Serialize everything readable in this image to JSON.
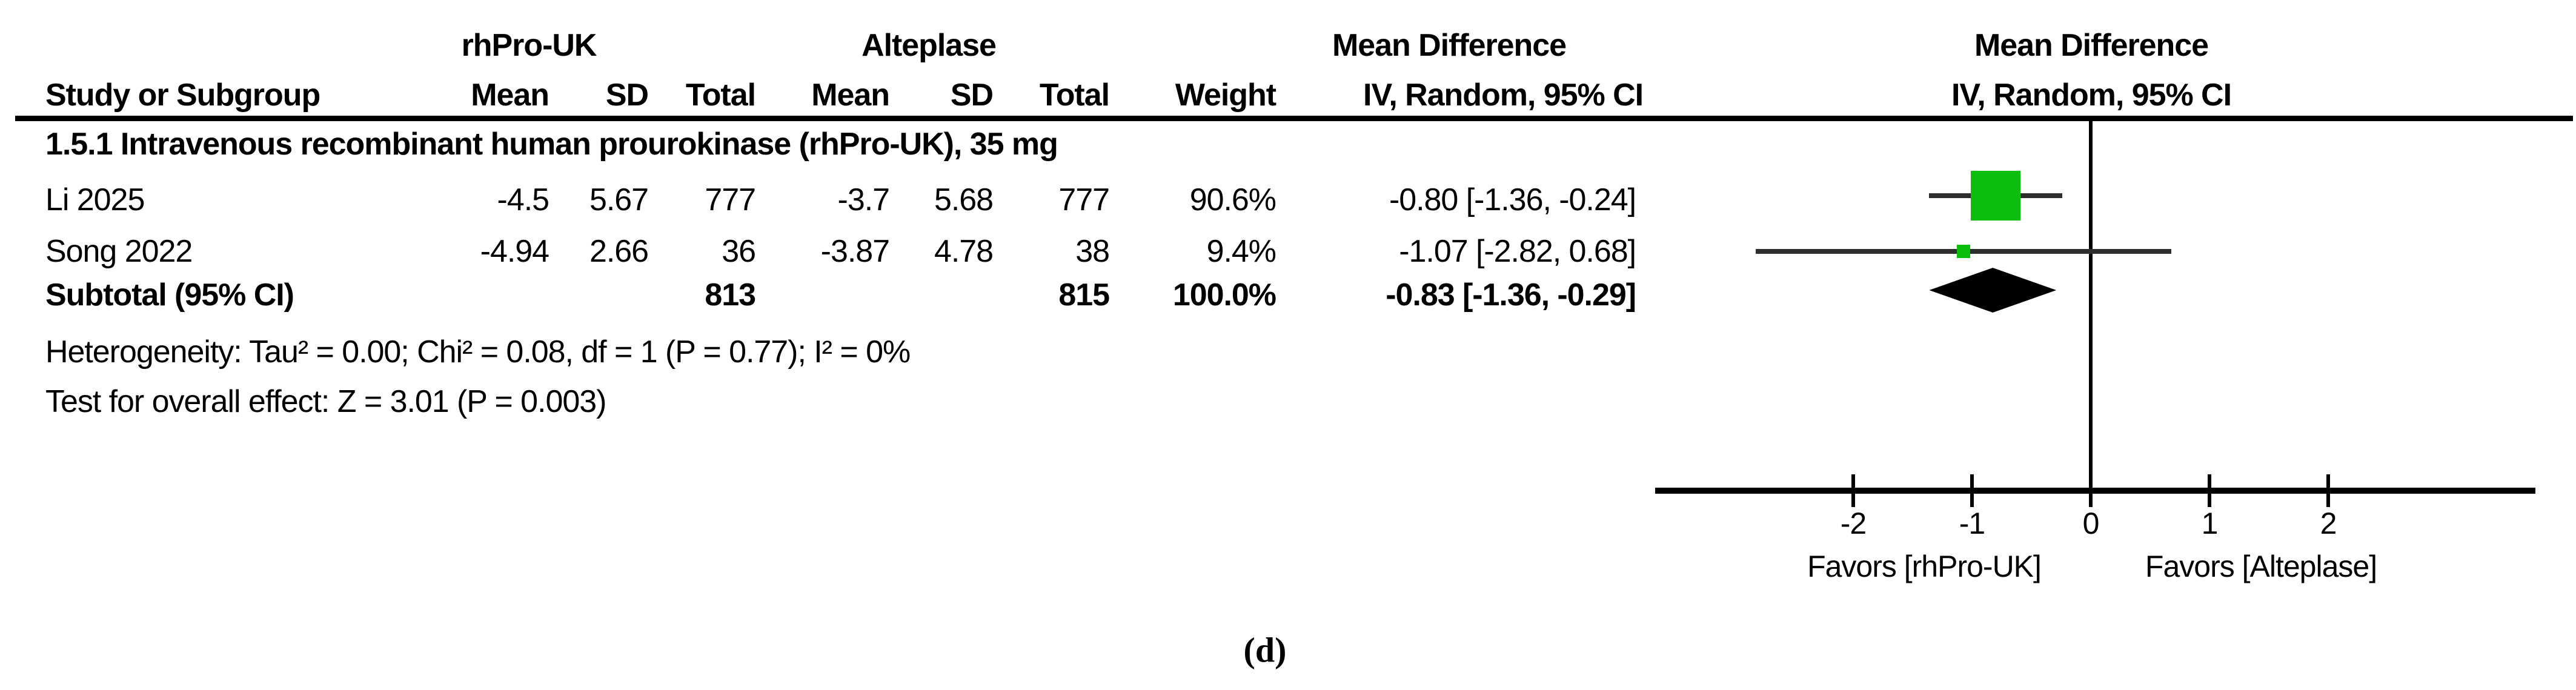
{
  "figure_label": "(d)",
  "colors": {
    "square_green": "#0CBE0C",
    "diamond_black": "#000000",
    "ci_line_gray": "#2e2e2e",
    "axis_black": "#000000"
  },
  "table": {
    "group1_header": "rhPro-UK",
    "group2_header": "Alteplase",
    "md_header_left": "Mean Difference",
    "study_col_header": "Study or Subgroup",
    "col_headers": [
      "Mean",
      "SD",
      "Total",
      "Mean",
      "SD",
      "Total",
      "Weight",
      "IV, Random, 95% CI"
    ],
    "subgroup_title": "1.5.1 Intravenous recombinant human prourokinase (rhPro-UK), 35 mg",
    "rows": [
      {
        "study": "Li 2025",
        "mean1": "-4.5",
        "sd1": "5.67",
        "total1": "777",
        "mean2": "-3.7",
        "sd2": "5.68",
        "total2": "777",
        "weight": "90.6%",
        "ci": "-0.80 [-1.36, -0.24]"
      },
      {
        "study": "Song 2022",
        "mean1": "-4.94",
        "sd1": "2.66",
        "total1": "36",
        "mean2": "-3.87",
        "sd2": "4.78",
        "total2": "38",
        "weight": "9.4%",
        "ci": "-1.07 [-2.82, 0.68]"
      }
    ],
    "subtotal": {
      "label": "Subtotal (95% CI)",
      "total1": "813",
      "total2": "815",
      "weight": "100.0%",
      "ci": "-0.83 [-1.36, -0.29]"
    },
    "heterogeneity": "Heterogeneity: Tau² = 0.00; Chi² = 0.08, df = 1 (P = 0.77); I² = 0%",
    "overall_effect": "Test for overall effect: Z = 3.01 (P = 0.003)"
  },
  "plot": {
    "header_line1": "Mean Difference",
    "header_line2": "IV, Random, 95% CI",
    "favors_left": "Favors [rhPro-UK]",
    "favors_right": "Favors [Alteplase]"
  },
  "chart_data": {
    "type": "forest",
    "effect_measure": "Mean Difference",
    "model": "IV, Random, 95% CI",
    "subgroup": "1.5.1 Intravenous recombinant human prourokinase (rhPro-UK), 35 mg",
    "studies": [
      {
        "name": "Li 2025",
        "treatment": {
          "mean": -4.5,
          "sd": 5.67,
          "total": 777
        },
        "control": {
          "mean": -3.7,
          "sd": 5.68,
          "total": 777
        },
        "weight_pct": 90.6,
        "md": -0.8,
        "ci_low": -1.36,
        "ci_high": -0.24
      },
      {
        "name": "Song 2022",
        "treatment": {
          "mean": -4.94,
          "sd": 2.66,
          "total": 36
        },
        "control": {
          "mean": -3.87,
          "sd": 4.78,
          "total": 38
        },
        "weight_pct": 9.4,
        "md": -1.07,
        "ci_low": -2.82,
        "ci_high": 0.68
      }
    ],
    "subtotal": {
      "total_treatment": 813,
      "total_control": 815,
      "weight_pct": 100.0,
      "md": -0.83,
      "ci_low": -1.36,
      "ci_high": -0.29
    },
    "heterogeneity": {
      "tau2": 0.0,
      "chi2": 0.08,
      "df": 1,
      "p": 0.77,
      "i2_pct": 0
    },
    "overall_effect": {
      "z": 3.01,
      "p": 0.003
    },
    "xaxis": {
      "ticks": [
        -2,
        -1,
        0,
        1,
        2
      ],
      "range_plotted": [
        -3.7,
        3.75
      ],
      "left_label": "Favors [rhPro-UK]",
      "right_label": "Favors [Alteplase]"
    }
  }
}
